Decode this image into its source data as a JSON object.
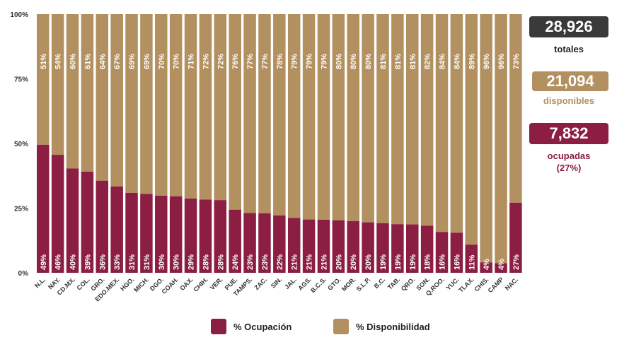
{
  "colors": {
    "ocupacion": "#8b1e42",
    "disponibilidad": "#b39060",
    "total_box": "#3a3a3a"
  },
  "stats": {
    "total_value": "28,926",
    "total_label": "totales",
    "disponibles_value": "21,094",
    "disponibles_label": "disponibles",
    "ocupadas_value": "7,832",
    "ocupadas_label": "ocupadas",
    "ocupadas_pct": "(27%)"
  },
  "legend": {
    "ocupacion": "% Ocupación",
    "disponibilidad": "% Disponibilidad"
  },
  "chart_data": {
    "type": "bar",
    "stacked": true,
    "ylim": [
      0,
      100
    ],
    "yticks": [
      "0%",
      "25%",
      "50%",
      "75%",
      "100%"
    ],
    "ytick_values": [
      0,
      25,
      50,
      75,
      100
    ],
    "categories": [
      "N.L.",
      "NAY.",
      "CD.MX.",
      "COL.",
      "GRO.",
      "EDO.MEX.",
      "HGO.",
      "MICH.",
      "DGO.",
      "COAH.",
      "OAX.",
      "CHIH.",
      "VER.",
      "PUE.",
      "TAMPS.",
      "ZAC.",
      "SIN.",
      "JAL.",
      "AGS.",
      "B.C.S.",
      "GTO.",
      "MOR.",
      "S.L.P.",
      "B.C.",
      "TAB.",
      "QRO.",
      "SON.",
      "Q.ROO.",
      "YUC.",
      "TLAX.",
      "CHIS.",
      "CAMP",
      "NAC."
    ],
    "series": [
      {
        "name": "% Ocupación",
        "values": [
          49.5,
          45.6,
          40.3,
          39.1,
          35.6,
          33.4,
          30.9,
          30.5,
          29.8,
          29.6,
          28.7,
          28.3,
          28.1,
          24.4,
          23.1,
          23.0,
          22.2,
          21.2,
          20.6,
          20.5,
          20.3,
          20.0,
          19.5,
          19.2,
          18.8,
          18.7,
          18.2,
          15.8,
          15.5,
          10.9,
          4.0,
          3.7,
          27.1
        ],
        "labels": [
          "49%",
          "46%",
          "40%",
          "39%",
          "36%",
          "33%",
          "31%",
          "31%",
          "30%",
          "30%",
          "29%",
          "28%",
          "28%",
          "24%",
          "23%",
          "23%",
          "22%",
          "21%",
          "21%",
          "21%",
          "20%",
          "20%",
          "20%",
          "19%",
          "19%",
          "19%",
          "18%",
          "16%",
          "16%",
          "11%",
          "4%",
          "4%",
          "27%"
        ]
      },
      {
        "name": "% Disponibilidad",
        "values": [
          50.5,
          54.4,
          59.7,
          60.9,
          64.4,
          66.6,
          69.1,
          69.5,
          70.2,
          70.4,
          71.3,
          71.7,
          71.9,
          75.6,
          76.9,
          77.0,
          77.8,
          78.8,
          79.4,
          79.5,
          79.7,
          80.0,
          80.5,
          80.8,
          81.2,
          81.3,
          81.8,
          84.2,
          84.5,
          89.1,
          96.0,
          96.3,
          72.9
        ],
        "labels": [
          "51%",
          "54%",
          "60%",
          "61%",
          "64%",
          "67%",
          "69%",
          "69%",
          "70%",
          "70%",
          "71%",
          "72%",
          "72%",
          "76%",
          "77%",
          "77%",
          "78%",
          "79%",
          "79%",
          "79%",
          "80%",
          "80%",
          "80%",
          "81%",
          "81%",
          "81%",
          "82%",
          "84%",
          "84%",
          "89%",
          "96%",
          "96%",
          "73%"
        ]
      }
    ]
  }
}
